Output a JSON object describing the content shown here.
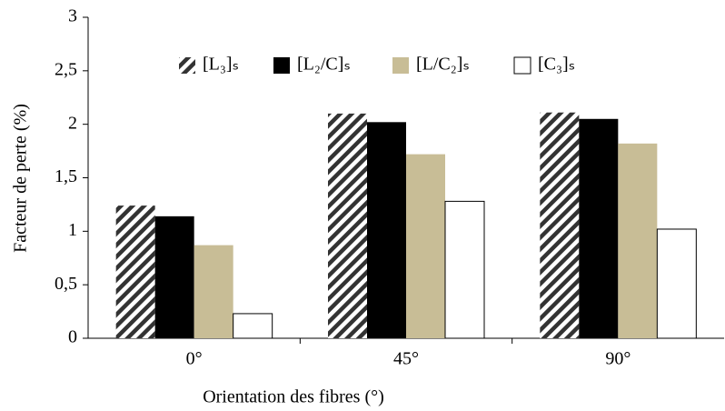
{
  "chart_data": {
    "type": "bar",
    "xlabel": "Orientation des fibres (°)",
    "ylabel": "Facteur de perte (%)",
    "categories": [
      "0°",
      "45°",
      "90°"
    ],
    "series": [
      {
        "name": "[L₃]ₛ",
        "color": "#333333",
        "hatch": true,
        "values": [
          1.24,
          2.1,
          2.11
        ]
      },
      {
        "name": "[L₂/C]ₛ",
        "color": "#000000",
        "values": [
          1.14,
          2.02,
          2.05
        ]
      },
      {
        "name": "[L/C₂]ₛ",
        "color": "#c8bd96",
        "values": [
          0.87,
          1.72,
          1.82
        ]
      },
      {
        "name": "[C₃]ₛ",
        "color": "#ffffff",
        "values": [
          0.23,
          1.28,
          1.02
        ]
      }
    ],
    "ylim": [
      0,
      3
    ],
    "yticks": [
      0,
      {
        "value": 0.5,
        "label": "0,5"
      },
      1,
      {
        "value": 1.5,
        "label": "1,5"
      },
      2,
      {
        "value": 2.5,
        "label": "2,5"
      },
      3
    ],
    "grid": false,
    "legend": "top"
  }
}
